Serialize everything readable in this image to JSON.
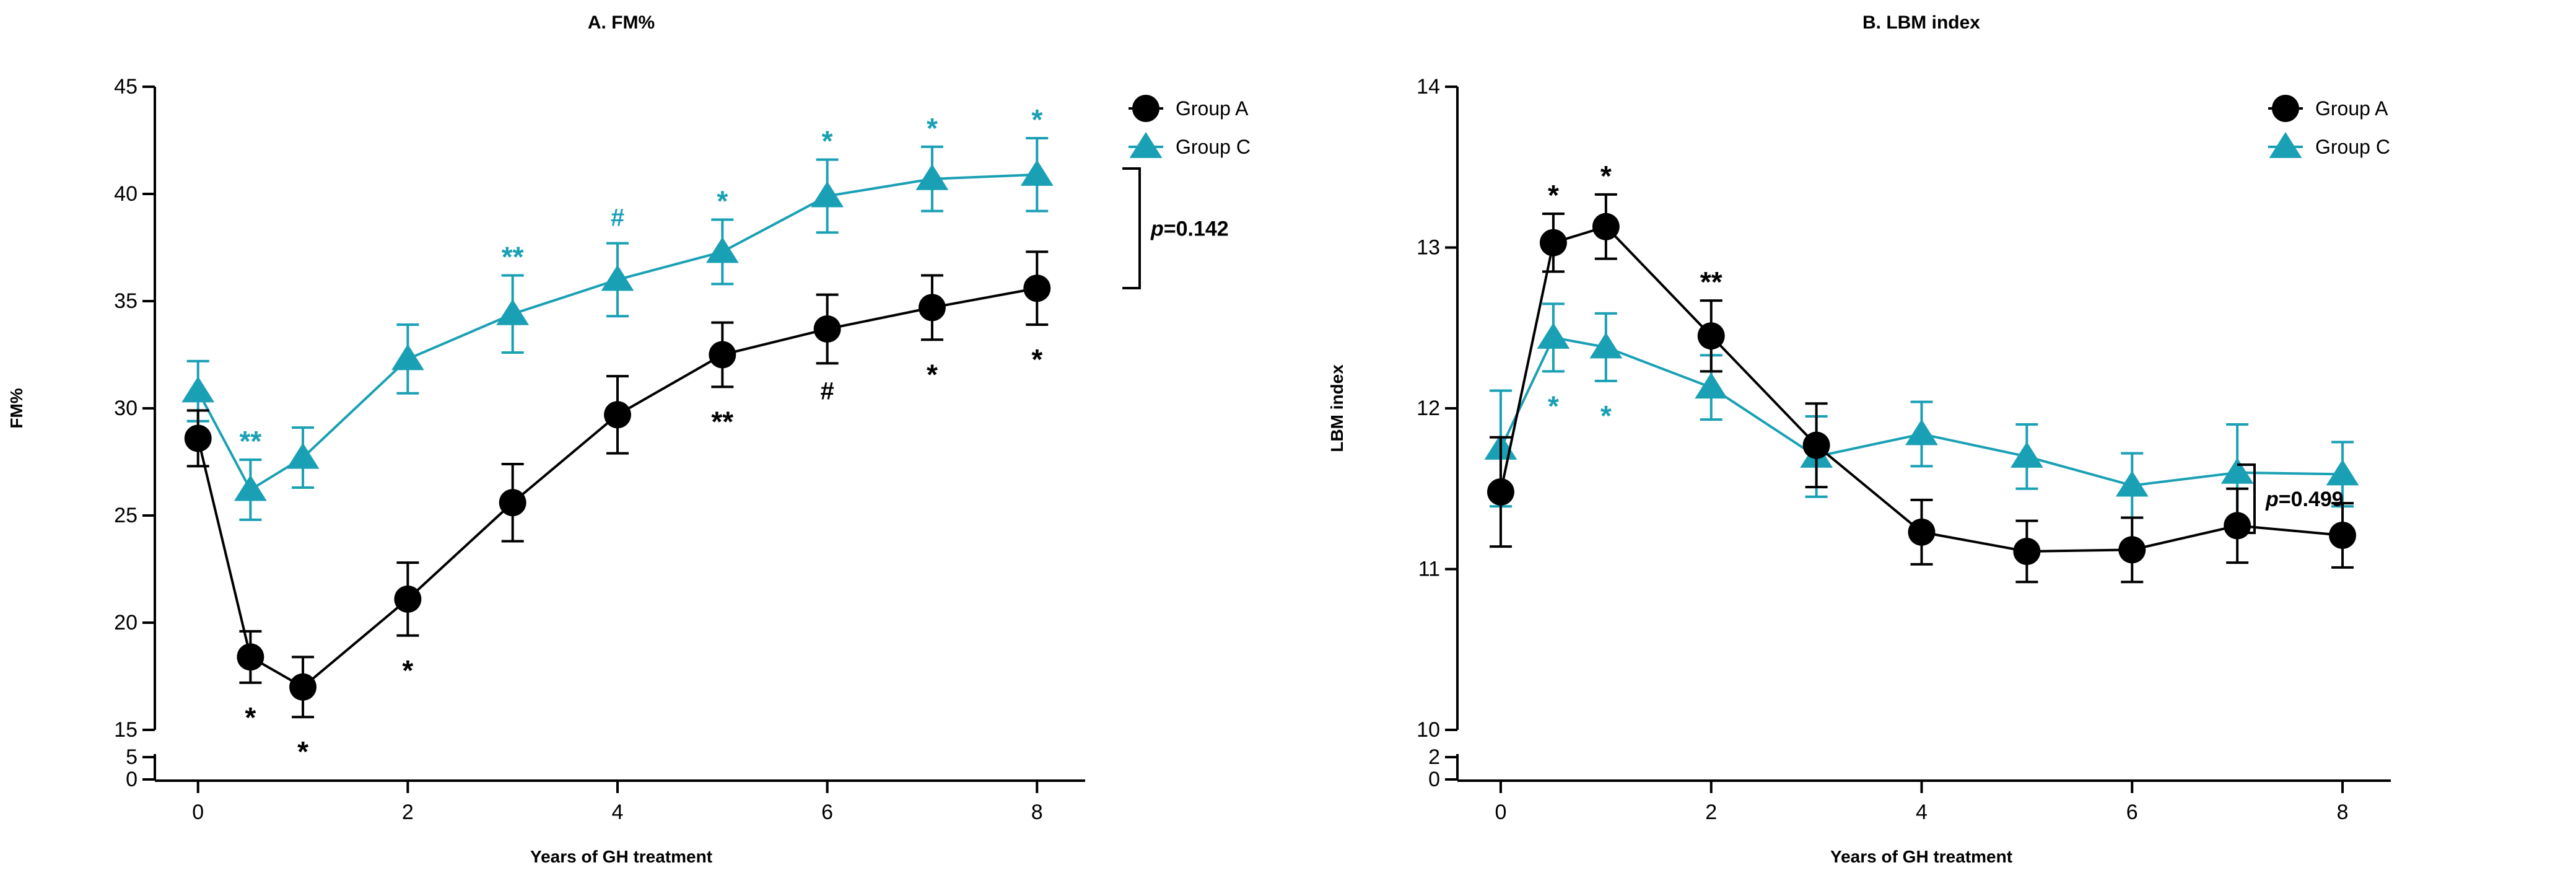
{
  "colors": {
    "group_a": "#000000",
    "group_c": "#1aa0b4"
  },
  "chart_data": [
    {
      "type": "line",
      "title": "A. FM%",
      "xlabel": "Years of GH treatment",
      "ylabel": "FM%",
      "xlim": [
        -0.4,
        8.4
      ],
      "ylim": [
        15,
        45
      ],
      "xticks": [
        0,
        2,
        4,
        6,
        8
      ],
      "yticks": [
        15,
        20,
        25,
        30,
        35,
        40,
        45
      ],
      "yticks_low": [
        0,
        5
      ],
      "x": [
        0,
        0.5,
        1,
        2,
        3,
        4,
        5,
        6,
        7,
        8
      ],
      "legend_position": "top-right",
      "series": [
        {
          "name": "Group A",
          "values": [
            28.6,
            18.4,
            17.0,
            21.1,
            25.6,
            29.7,
            32.5,
            33.7,
            34.7,
            35.6
          ],
          "errors": [
            1.3,
            1.2,
            1.4,
            1.7,
            1.8,
            1.8,
            1.5,
            1.6,
            1.5,
            1.7
          ],
          "annotations": [
            "",
            "*",
            "*",
            "*",
            "",
            "",
            "**",
            "#",
            "*",
            "*"
          ]
        },
        {
          "name": "Group C",
          "values": [
            30.8,
            26.2,
            27.7,
            32.3,
            34.4,
            36.0,
            37.3,
            39.9,
            40.7,
            40.9
          ],
          "errors": [
            1.4,
            1.4,
            1.4,
            1.6,
            1.8,
            1.7,
            1.5,
            1.7,
            1.5,
            1.7
          ],
          "annotations": [
            "",
            "**",
            "",
            "",
            "**",
            "#",
            "*",
            "*",
            "*",
            "*"
          ]
        }
      ],
      "pvalue": {
        "prefix": "p",
        "value": "=0.142"
      }
    },
    {
      "type": "line",
      "title": "B. LBM index",
      "xlabel": "Years of GH treatment",
      "ylabel": "LBM index",
      "xlim": [
        -0.4,
        8.4
      ],
      "ylim": [
        10,
        14
      ],
      "xticks": [
        0,
        2,
        4,
        6,
        8
      ],
      "yticks": [
        10,
        11,
        12,
        13,
        14
      ],
      "yticks_low": [
        0,
        2
      ],
      "x": [
        0,
        0.5,
        1,
        2,
        3,
        4,
        5,
        6,
        7,
        8
      ],
      "legend_position": "top-right",
      "series": [
        {
          "name": "Group A",
          "values": [
            11.48,
            13.03,
            13.13,
            12.45,
            11.77,
            11.23,
            11.11,
            11.12,
            11.27,
            11.21
          ],
          "errors": [
            0.34,
            0.18,
            0.2,
            0.22,
            0.26,
            0.2,
            0.19,
            0.2,
            0.23,
            0.2
          ],
          "annotations": [
            "",
            "*",
            "*",
            "**",
            "",
            "",
            "",
            "",
            "",
            ""
          ]
        },
        {
          "name": "Group C",
          "values": [
            11.75,
            12.44,
            12.38,
            12.13,
            11.7,
            11.84,
            11.7,
            11.52,
            11.6,
            11.59
          ],
          "errors": [
            0.36,
            0.21,
            0.21,
            0.2,
            0.25,
            0.2,
            0.2,
            0.2,
            0.3,
            0.2
          ],
          "annotations": [
            "",
            "*",
            "*",
            "",
            "",
            "",
            "",
            "",
            "",
            ""
          ]
        }
      ],
      "pvalue": {
        "prefix": "p",
        "value": "=0.499"
      }
    }
  ]
}
